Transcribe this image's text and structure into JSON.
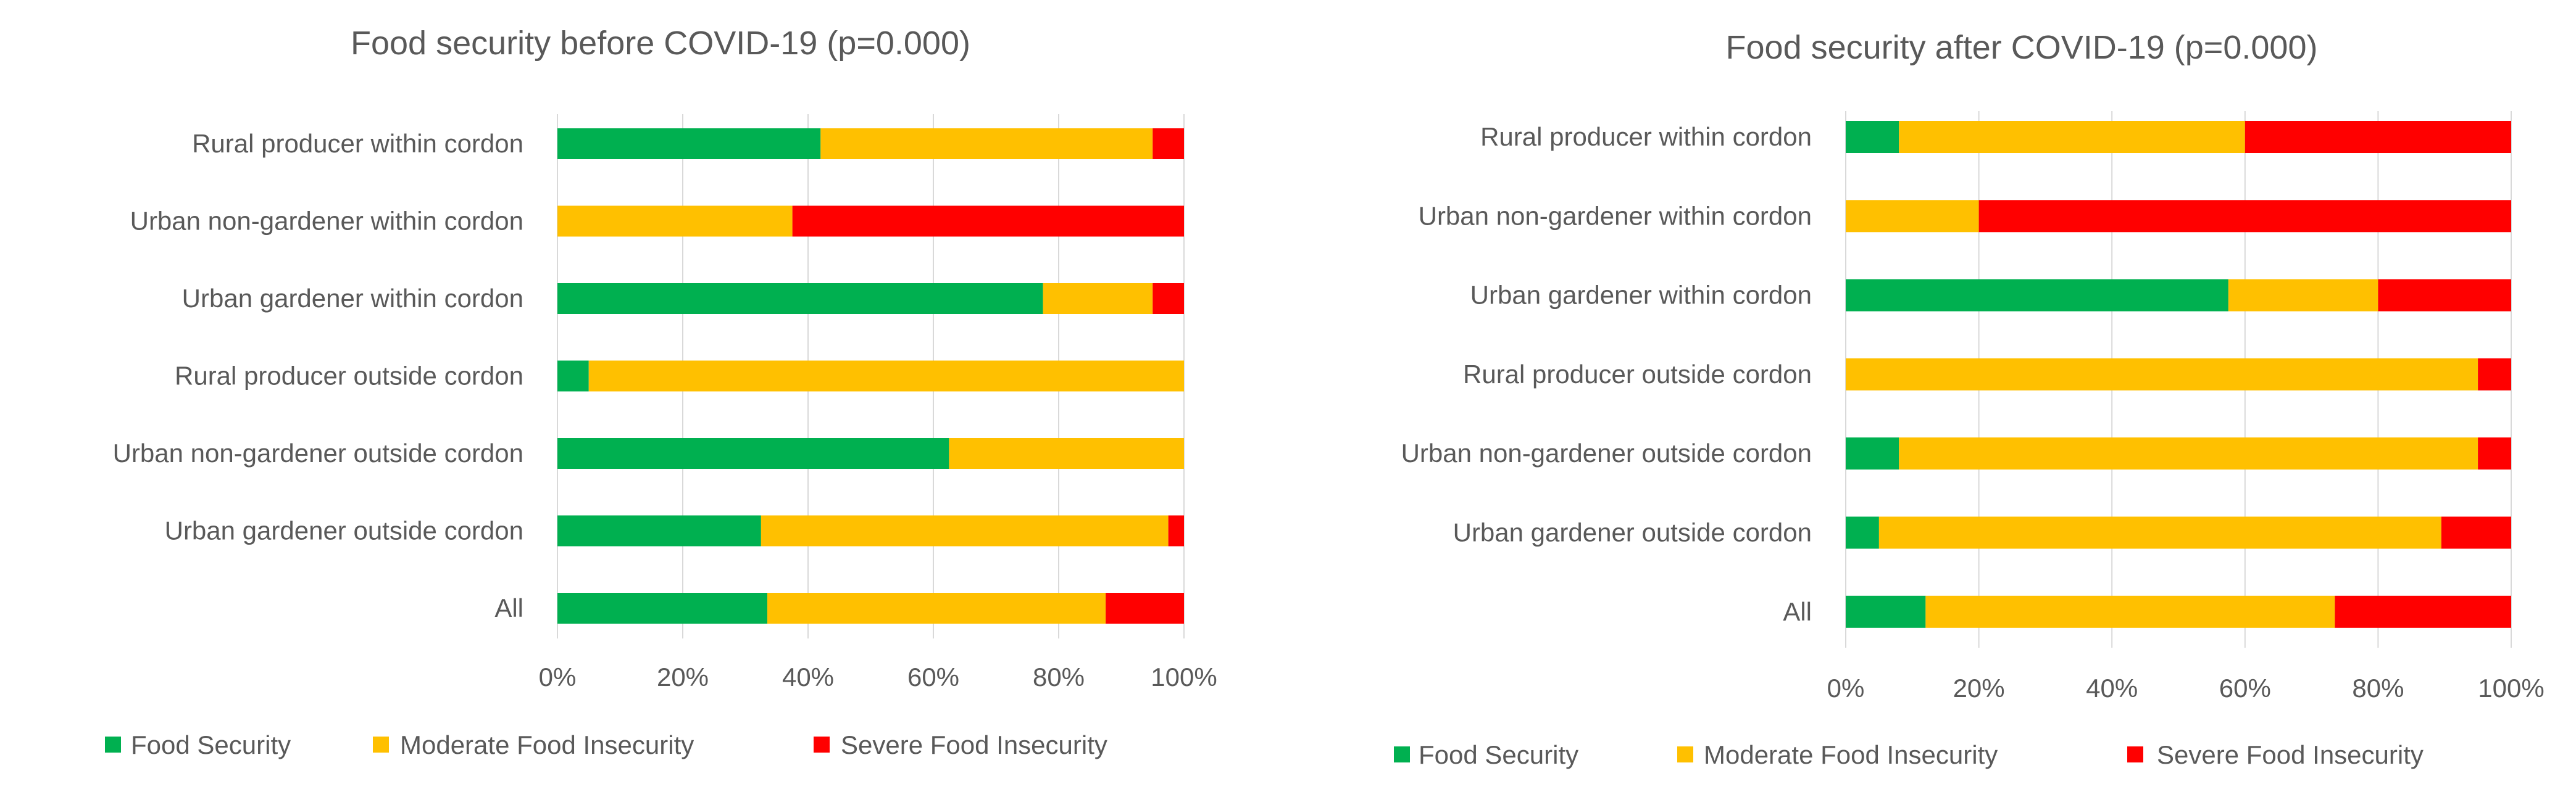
{
  "colors": {
    "food_security": "#00b050",
    "moderate": "#ffc000",
    "severe": "#ff0000"
  },
  "chart_data": [
    {
      "type": "bar",
      "orientation": "horizontal",
      "stacked": "percent",
      "title": "Food security before COVID-19 (p=0.000)",
      "categories": [
        "Rural producer within cordon",
        "Urban non-gardener within cordon",
        "Urban gardener within cordon",
        "Rural producer outside cordon",
        "Urban non-gardener outside cordon",
        "Urban gardener outside cordon",
        "All"
      ],
      "series": [
        {
          "name": "Food Security",
          "color": "#00b050",
          "values": [
            42,
            0,
            77.5,
            5,
            62.5,
            32.5,
            33.5
          ]
        },
        {
          "name": "Moderate Food Insecurity",
          "color": "#ffc000",
          "values": [
            53,
            37.5,
            17.5,
            95,
            37.5,
            65,
            54
          ]
        },
        {
          "name": "Severe Food Insecurity",
          "color": "#ff0000",
          "values": [
            5,
            62.5,
            5,
            0,
            0,
            2.5,
            12.5
          ]
        }
      ],
      "xlim": [
        0,
        100
      ],
      "xticks": [
        "0%",
        "20%",
        "40%",
        "60%",
        "80%",
        "100%"
      ],
      "grid": true,
      "legend": "bottom"
    },
    {
      "type": "bar",
      "orientation": "horizontal",
      "stacked": "percent",
      "title": "Food security after COVID-19 (p=0.000)",
      "categories": [
        "Rural producer within cordon",
        "Urban non-gardener within cordon",
        "Urban gardener within cordon",
        "Rural producer outside cordon",
        "Urban non-gardener outside cordon",
        "Urban gardener outside cordon",
        "All"
      ],
      "series": [
        {
          "name": "Food Security",
          "color": "#00b050",
          "values": [
            8,
            0,
            57.5,
            0,
            8,
            5,
            12
          ]
        },
        {
          "name": "Moderate Food Insecurity",
          "color": "#ffc000",
          "values": [
            52,
            20,
            22.5,
            95,
            87,
            84.5,
            61.5
          ]
        },
        {
          "name": "Severe Food Insecurity",
          "color": "#ff0000",
          "values": [
            40,
            80,
            20,
            5,
            5,
            10.5,
            26.5
          ]
        }
      ],
      "xlim": [
        0,
        100
      ],
      "xticks": [
        "0%",
        "20%",
        "40%",
        "60%",
        "80%",
        "100%"
      ],
      "grid": true,
      "legend": "bottom"
    }
  ]
}
